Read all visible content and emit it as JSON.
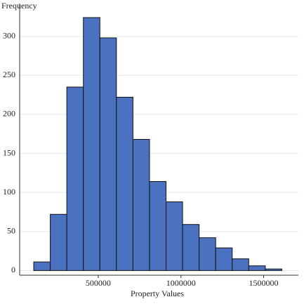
{
  "chart_data": {
    "type": "histogram",
    "ylabel": "Frequency",
    "xlabel": "Property Values",
    "bins": [
      110000,
      210000,
      310000,
      410000,
      510000,
      610000,
      710000,
      810000,
      910000,
      1010000,
      1110000,
      1210000,
      1310000,
      1410000,
      1510000,
      1610000
    ],
    "values": [
      11,
      72,
      235,
      324,
      298,
      222,
      168,
      114,
      88,
      59,
      42,
      29,
      15,
      6,
      2
    ],
    "color": "#4a72c0",
    "xlim": [
      25000,
      1710000
    ],
    "ylim": [
      -6,
      342
    ],
    "xticks": [
      500000,
      1000000,
      1500000
    ],
    "yticks": [
      0,
      50,
      100,
      150,
      200,
      250,
      300
    ],
    "grid": true
  }
}
